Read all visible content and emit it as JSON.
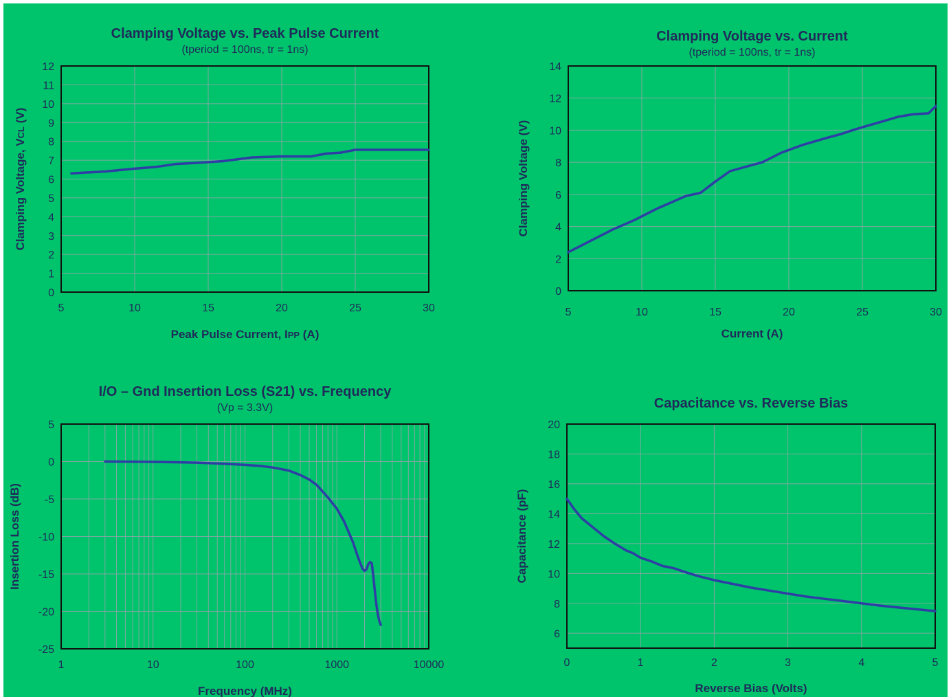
{
  "colors": {
    "background": "#00c46b",
    "text": "#1f2a5a",
    "series": "#2e3ea5",
    "grid": "#7fa7a1",
    "frame": "#111111"
  },
  "chart_data": [
    {
      "id": "tl",
      "type": "line",
      "title": "Clamping Voltage vs. Peak Pulse Current",
      "subtitle": "(tperiod = 100ns, tr = 1ns)",
      "xlabel_parts": [
        {
          "text": "Peak Pulse Current, I"
        },
        {
          "text": "PP",
          "sub": true
        },
        {
          "text": " (A)"
        }
      ],
      "ylabel_parts": [
        {
          "text": "Clamping Voltage, V"
        },
        {
          "text": "CL",
          "sub": true
        },
        {
          "text": " (V)"
        }
      ],
      "xlim": [
        5,
        30
      ],
      "ylim": [
        0,
        12
      ],
      "x_ticks": [
        5,
        10,
        15,
        20,
        25,
        30
      ],
      "y_ticks": [
        0,
        1,
        2,
        3,
        4,
        5,
        6,
        7,
        8,
        9,
        10,
        11,
        12
      ],
      "x_scale": "linear",
      "grid": true,
      "series": [
        {
          "x": [
            5.7,
            8,
            10,
            11.5,
            12.8,
            14,
            16,
            18,
            20,
            22,
            23,
            24,
            25,
            27,
            30
          ],
          "y": [
            6.3,
            6.4,
            6.55,
            6.65,
            6.8,
            6.85,
            6.95,
            7.15,
            7.2,
            7.2,
            7.35,
            7.4,
            7.55,
            7.55,
            7.55
          ]
        }
      ]
    },
    {
      "id": "tr",
      "type": "line",
      "title": "Clamping Voltage vs. Current",
      "subtitle": "(tperiod = 100ns, tr = 1ns)",
      "xlabel_parts": [
        {
          "text": "Current (A)"
        }
      ],
      "ylabel_parts": [
        {
          "text": "Clamping Voltage (V)"
        }
      ],
      "xlim": [
        5,
        30
      ],
      "ylim": [
        0,
        14
      ],
      "x_ticks": [
        5,
        10,
        15,
        20,
        25,
        30
      ],
      "y_ticks": [
        0,
        2,
        4,
        6,
        8,
        10,
        12,
        14
      ],
      "x_scale": "linear",
      "grid": true,
      "series": [
        {
          "x": [
            5,
            8,
            9.5,
            11,
            13,
            14,
            15,
            16,
            17,
            18.2,
            19.5,
            21,
            22.5,
            23.5,
            24.5,
            26,
            27.5,
            28.5,
            29.5,
            30
          ],
          "y": [
            2.4,
            3.8,
            4.4,
            5.1,
            5.9,
            6.1,
            6.8,
            7.45,
            7.7,
            8.0,
            8.6,
            9.1,
            9.5,
            9.75,
            10.05,
            10.45,
            10.85,
            11.0,
            11.05,
            11.5
          ]
        }
      ]
    },
    {
      "id": "bl",
      "type": "line",
      "title": "I/O – Gnd Insertion Loss (S21) vs. Frequency",
      "subtitle": "(Vp = 3.3V)",
      "xlabel_parts": [
        {
          "text": "Frequency (MHz)"
        }
      ],
      "ylabel_parts": [
        {
          "text": "Insertion Loss (dB)"
        }
      ],
      "xlim": [
        1,
        10000
      ],
      "ylim": [
        -25,
        5
      ],
      "x_ticks": [
        1,
        10,
        100,
        1000,
        10000
      ],
      "y_ticks": [
        -25,
        -20,
        -15,
        -10,
        -5,
        0,
        5
      ],
      "x_scale": "log",
      "grid": true,
      "series": [
        {
          "x": [
            3,
            10,
            30,
            60,
            100,
            150,
            200,
            300,
            400,
            500,
            600,
            700,
            800,
            900,
            1000,
            1200,
            1500,
            1700,
            1900,
            2000,
            2100,
            2200,
            2300,
            2400,
            2500,
            2600,
            2700,
            2800,
            2900,
            3000
          ],
          "y": [
            0,
            -0.05,
            -0.15,
            -0.3,
            -0.45,
            -0.6,
            -0.8,
            -1.2,
            -1.8,
            -2.4,
            -3.1,
            -4.0,
            -4.8,
            -5.6,
            -6.3,
            -8.0,
            -10.8,
            -12.8,
            -14.3,
            -14.6,
            -14.4,
            -13.7,
            -13.4,
            -13.6,
            -15.5,
            -17.5,
            -19.2,
            -20.5,
            -21.3,
            -21.8
          ]
        }
      ]
    },
    {
      "id": "br",
      "type": "line",
      "title": "Capacitance vs. Reverse Bias",
      "subtitle": "",
      "xlabel_parts": [
        {
          "text": "Reverse Bias (Volts)"
        }
      ],
      "ylabel_parts": [
        {
          "text": "Capacitance (pF)"
        }
      ],
      "xlim": [
        0,
        5
      ],
      "ylim": [
        5,
        20
      ],
      "x_ticks": [
        0,
        1,
        2,
        3,
        4,
        5
      ],
      "y_ticks": [
        6,
        8,
        10,
        12,
        14,
        16,
        18,
        20
      ],
      "x_scale": "linear",
      "grid": true,
      "series": [
        {
          "x": [
            0,
            0.1,
            0.2,
            0.35,
            0.5,
            0.65,
            0.8,
            0.9,
            1.0,
            1.15,
            1.3,
            1.45,
            1.6,
            1.8,
            2.0,
            2.25,
            2.5,
            2.75,
            3.0,
            3.25,
            3.5,
            3.75,
            4.0,
            4.25,
            4.5,
            4.75,
            5.0
          ],
          "y": [
            15.0,
            14.3,
            13.7,
            13.1,
            12.5,
            12.0,
            11.55,
            11.35,
            11.05,
            10.8,
            10.5,
            10.35,
            10.1,
            9.8,
            9.55,
            9.3,
            9.05,
            8.85,
            8.65,
            8.45,
            8.3,
            8.15,
            8.0,
            7.85,
            7.72,
            7.6,
            7.48
          ]
        }
      ]
    }
  ]
}
